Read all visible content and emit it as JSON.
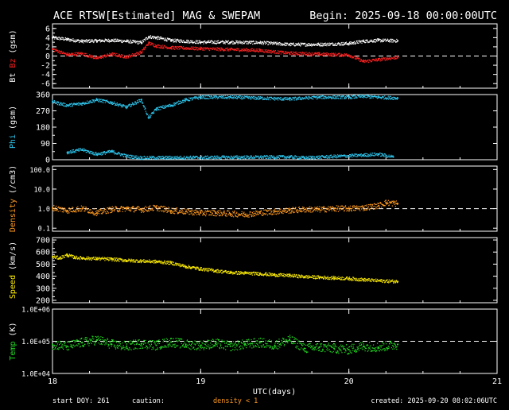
{
  "header": {
    "title": "ACE RTSW[Estimated] MAG & SWEPAM",
    "begin": "Begin: 2025-09-18 00:00:00UTC"
  },
  "footer": {
    "start_doy": "start DOY: 261",
    "caution": "caution:",
    "density_note": "density < 1",
    "created": "created: 2025-09-20 08:02:06UTC"
  },
  "colors": {
    "bt": "#ffffff",
    "bz": "#ff2020",
    "phi": "#2ec8f0",
    "density": "#ff9a20",
    "speed": "#ffee00",
    "temp": "#22dd22",
    "axis": "#ffffff"
  },
  "chart_data": {
    "type": "scatter",
    "x_axis": {
      "label": "UTC(days)",
      "range": [
        18,
        21
      ],
      "ticks": [
        18,
        19,
        20,
        21
      ],
      "tick_labels": [
        "18",
        "19",
        "20",
        "21"
      ],
      "data_end": 20.33
    },
    "panels": [
      {
        "id": "mag",
        "ylabel_parts": [
          {
            "text": "Bt",
            "color": "#ffffff"
          },
          {
            "text": "Bz",
            "color": "#ff2020"
          },
          {
            "text": "(gsm)",
            "color": "#ffffff"
          }
        ],
        "scale": "linear",
        "ylim": [
          -7,
          7
        ],
        "ticks": [
          6,
          4,
          2,
          0,
          -2,
          -4,
          -6
        ],
        "tick_labels": [
          "6",
          "4",
          "2",
          "0",
          "-2",
          "-4",
          "-6"
        ],
        "ref_lines": [
          0
        ],
        "series": [
          {
            "name": "Bt",
            "color": "#ffffff",
            "x": [
              18.0,
              18.1,
              18.2,
              18.3,
              18.4,
              18.5,
              18.6,
              18.65,
              18.7,
              18.8,
              19.0,
              19.2,
              19.4,
              19.6,
              19.8,
              20.0,
              20.1,
              20.2,
              20.33
            ],
            "y": [
              4.0,
              3.6,
              3.2,
              3.3,
              3.4,
              3.2,
              2.9,
              4.2,
              4.0,
              3.4,
              3.0,
              3.0,
              2.9,
              2.5,
              2.5,
              2.7,
              3.2,
              3.4,
              3.3
            ]
          },
          {
            "name": "Bz",
            "color": "#ff2020",
            "x": [
              18.0,
              18.1,
              18.2,
              18.3,
              18.4,
              18.5,
              18.6,
              18.65,
              18.7,
              18.8,
              19.0,
              19.2,
              19.4,
              19.6,
              19.8,
              20.0,
              20.1,
              20.2,
              20.33
            ],
            "y": [
              1.5,
              0.3,
              0.5,
              -0.5,
              0.4,
              -0.2,
              0.8,
              2.8,
              2.2,
              1.8,
              1.6,
              1.4,
              1.2,
              0.6,
              0.4,
              0.2,
              -1.2,
              -0.8,
              -0.3
            ]
          }
        ]
      },
      {
        "id": "phi",
        "ylabel_parts": [
          {
            "text": "Phi",
            "color": "#2ec8f0"
          },
          {
            "text": "(gsm)",
            "color": "#ffffff"
          }
        ],
        "scale": "linear",
        "ylim": [
          0,
          360
        ],
        "ticks": [
          360,
          270,
          180,
          90,
          0
        ],
        "tick_labels": [
          "360",
          "270",
          "180",
          "90",
          "0"
        ],
        "ref_lines": [],
        "series": [
          {
            "name": "Phi",
            "color": "#2ec8f0",
            "x": [
              18.0,
              18.1,
              18.2,
              18.3,
              18.4,
              18.5,
              18.6,
              18.65,
              18.7,
              18.8,
              18.9,
              19.0,
              19.2,
              19.4,
              19.6,
              19.8,
              20.0,
              20.1,
              20.2,
              20.33
            ],
            "y": [
              320,
              300,
              310,
              330,
              315,
              290,
              330,
              230,
              280,
              300,
              330,
              345,
              345,
              340,
              335,
              345,
              345,
              350,
              345,
              340
            ]
          },
          {
            "name": "Phi (low branch)",
            "color": "#2ec8f0",
            "x": [
              18.1,
              18.2,
              18.3,
              18.4,
              18.5,
              18.6,
              19.6,
              19.7,
              20.1,
              20.2,
              20.3
            ],
            "y": [
              40,
              55,
              30,
              45,
              20,
              10,
              15,
              10,
              25,
              30,
              15
            ]
          }
        ]
      },
      {
        "id": "density",
        "ylabel_parts": [
          {
            "text": "Density",
            "color": "#ff9a20"
          },
          {
            "text": "(/cm3)",
            "color": "#ffffff"
          }
        ],
        "scale": "log",
        "ylim": [
          0.07,
          150
        ],
        "ticks": [
          100.0,
          10.0,
          1.0,
          0.1
        ],
        "tick_labels": [
          "100.0",
          "10.0",
          "1.0",
          "0.1"
        ],
        "ref_lines": [
          1.0
        ],
        "series": [
          {
            "name": "Density",
            "color": "#ff9a20",
            "x": [
              18.0,
              18.1,
              18.2,
              18.3,
              18.4,
              18.5,
              18.6,
              18.7,
              18.8,
              18.9,
              19.0,
              19.1,
              19.2,
              19.3,
              19.4,
              19.5,
              19.6,
              19.7,
              19.8,
              19.9,
              20.0,
              20.1,
              20.2,
              20.25,
              20.33
            ],
            "y": [
              1.1,
              0.8,
              1.0,
              0.6,
              0.9,
              1.0,
              0.9,
              1.1,
              0.8,
              0.7,
              0.6,
              0.6,
              0.55,
              0.5,
              0.6,
              0.7,
              0.8,
              0.9,
              0.9,
              1.0,
              1.0,
              1.1,
              1.4,
              2.0,
              1.8
            ]
          }
        ]
      },
      {
        "id": "speed",
        "ylabel_parts": [
          {
            "text": "Speed",
            "color": "#ffee00"
          },
          {
            "text": "(km/s)",
            "color": "#ffffff"
          }
        ],
        "scale": "linear",
        "ylim": [
          180,
          720
        ],
        "ticks": [
          700,
          600,
          500,
          400,
          300,
          200
        ],
        "tick_labels": [
          "700",
          "600",
          "500",
          "400",
          "300",
          "200"
        ],
        "ref_lines": [],
        "series": [
          {
            "name": "Speed",
            "color": "#ffee00",
            "x": [
              18.0,
              18.05,
              18.1,
              18.15,
              18.2,
              18.3,
              18.4,
              18.5,
              18.6,
              18.7,
              18.8,
              18.9,
              19.0,
              19.1,
              19.2,
              19.3,
              19.4,
              19.5,
              19.6,
              19.7,
              19.8,
              19.9,
              20.0,
              20.1,
              20.2,
              20.33
            ],
            "y": [
              560,
              550,
              575,
              555,
              550,
              545,
              540,
              530,
              525,
              520,
              510,
              480,
              460,
              445,
              430,
              425,
              420,
              410,
              405,
              395,
              390,
              385,
              380,
              370,
              362,
              355
            ]
          }
        ]
      },
      {
        "id": "temp",
        "ylabel_parts": [
          {
            "text": "Temp",
            "color": "#22dd22"
          },
          {
            "text": "(K)",
            "color": "#ffffff"
          }
        ],
        "scale": "log",
        "ylim": [
          10000,
          1000000
        ],
        "ticks": [
          1000000,
          100000,
          10000
        ],
        "tick_labels": [
          "1.0E+06",
          "1.0E+05",
          "1.0E+04"
        ],
        "ref_lines": [
          100000
        ],
        "series": [
          {
            "name": "Temp",
            "color": "#22dd22",
            "x": [
              18.0,
              18.1,
              18.2,
              18.3,
              18.4,
              18.5,
              18.6,
              18.7,
              18.8,
              18.9,
              19.0,
              19.1,
              19.2,
              19.3,
              19.4,
              19.5,
              19.6,
              19.7,
              19.8,
              19.9,
              20.0,
              20.1,
              20.2,
              20.33
            ],
            "y": [
              80000,
              70000,
              90000,
              110000,
              80000,
              70000,
              85000,
              75000,
              95000,
              80000,
              75000,
              85000,
              70000,
              80000,
              90000,
              75000,
              110000,
              60000,
              65000,
              60000,
              55000,
              70000,
              65000,
              80000
            ]
          }
        ]
      }
    ]
  }
}
